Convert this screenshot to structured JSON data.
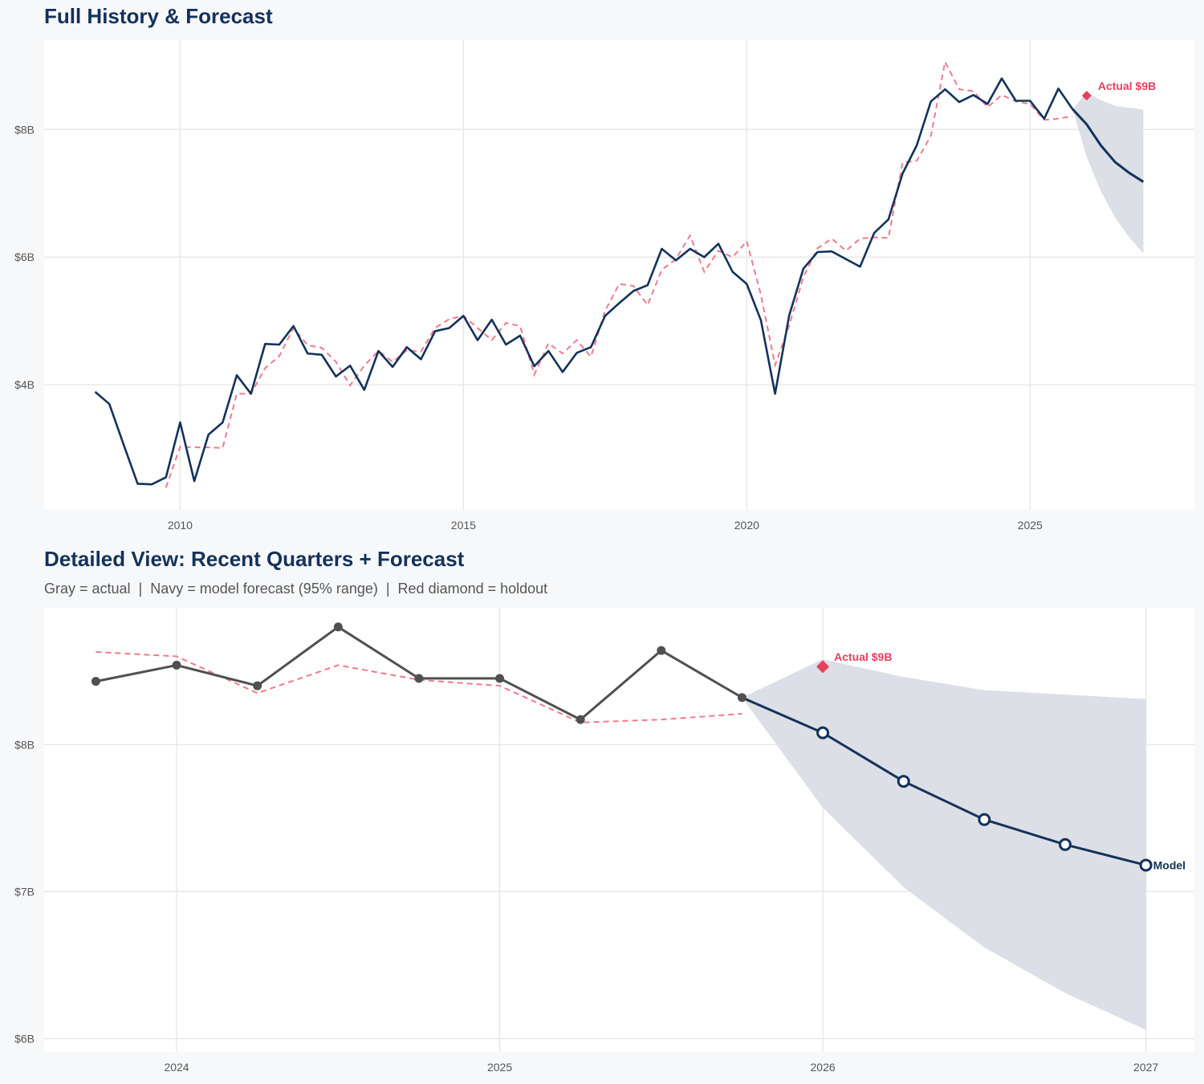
{
  "chart_data": [
    {
      "type": "line",
      "title": "Full History & Forecast",
      "xlim": [
        2007.6,
        2027.9
      ],
      "ylim": [
        2.04,
        9.4
      ],
      "xticks": [
        {
          "value": 2010,
          "label": "2010"
        },
        {
          "value": 2015,
          "label": "2015"
        },
        {
          "value": 2020,
          "label": "2020"
        },
        {
          "value": 2025,
          "label": "2025"
        }
      ],
      "yticks": [
        {
          "value": 4,
          "label": "$4B"
        },
        {
          "value": 6,
          "label": "$6B"
        },
        {
          "value": 8,
          "label": "$8B"
        }
      ],
      "grid": true,
      "actual": {
        "color": "#13325b",
        "x": [
          2008.5,
          2008.75,
          2009,
          2009.25,
          2009.5,
          2009.75,
          2010,
          2010.25,
          2010.5,
          2010.75,
          2011,
          2011.25,
          2011.5,
          2011.75,
          2012,
          2012.25,
          2012.5,
          2012.75,
          2013,
          2013.25,
          2013.5,
          2013.75,
          2014,
          2014.25,
          2014.5,
          2014.75,
          2015,
          2015.25,
          2015.5,
          2015.75,
          2016,
          2016.25,
          2016.5,
          2016.75,
          2017,
          2017.25,
          2017.5,
          2017.75,
          2018,
          2018.25,
          2018.5,
          2018.75,
          2019,
          2019.25,
          2019.5,
          2019.75,
          2020,
          2020.25,
          2020.5,
          2020.75,
          2021,
          2021.25,
          2021.5,
          2021.75,
          2022,
          2022.25,
          2022.5,
          2022.75,
          2023,
          2023.25,
          2023.5,
          2023.75,
          2024,
          2024.25,
          2024.5,
          2024.75,
          2025,
          2025.25,
          2025.5,
          2025.75
        ],
        "y": [
          3.89,
          3.7,
          3.07,
          2.45,
          2.44,
          2.55,
          3.41,
          2.49,
          3.22,
          3.41,
          4.15,
          3.86,
          4.64,
          4.63,
          4.92,
          4.49,
          4.47,
          4.13,
          4.3,
          3.92,
          4.53,
          4.28,
          4.59,
          4.4,
          4.84,
          4.89,
          5.08,
          4.7,
          5.02,
          4.63,
          4.77,
          4.29,
          4.53,
          4.2,
          4.5,
          4.59,
          5.08,
          5.28,
          5.47,
          5.56,
          6.13,
          5.95,
          6.13,
          6.0,
          6.21,
          5.77,
          5.58,
          5.01,
          3.86,
          5.09,
          5.82,
          6.08,
          6.09,
          5.97,
          5.85,
          6.38,
          6.59,
          7.31,
          7.75,
          8.44,
          8.63,
          8.43,
          8.54,
          8.4,
          8.8,
          8.45,
          8.45,
          8.17,
          8.64,
          8.32
        ]
      },
      "fitted": {
        "color": "#f07a8c",
        "x": [
          2009.75,
          2010,
          2010.25,
          2010.5,
          2010.75,
          2011,
          2011.25,
          2011.5,
          2011.75,
          2012,
          2012.25,
          2012.5,
          2012.75,
          2013,
          2013.25,
          2013.5,
          2013.75,
          2014,
          2014.25,
          2014.5,
          2014.75,
          2015,
          2015.25,
          2015.5,
          2015.75,
          2016,
          2016.25,
          2016.5,
          2016.75,
          2017,
          2017.25,
          2017.5,
          2017.75,
          2018,
          2018.25,
          2018.5,
          2018.75,
          2019,
          2019.25,
          2019.5,
          2019.75,
          2020,
          2020.25,
          2020.5,
          2020.75,
          2021,
          2021.25,
          2021.5,
          2021.75,
          2022,
          2022.25,
          2022.5,
          2022.75,
          2023,
          2023.25,
          2023.5,
          2023.75,
          2024,
          2024.25,
          2024.5,
          2024.75,
          2025,
          2025.25,
          2025.5,
          2025.75
        ],
        "y": [
          2.39,
          3.03,
          3.02,
          3.02,
          3.01,
          3.86,
          3.86,
          4.26,
          4.45,
          4.89,
          4.62,
          4.58,
          4.36,
          3.99,
          4.3,
          4.53,
          4.36,
          4.54,
          4.52,
          4.89,
          5.03,
          5.08,
          4.89,
          4.7,
          4.97,
          4.92,
          4.16,
          4.65,
          4.49,
          4.7,
          4.44,
          5.16,
          5.58,
          5.55,
          5.25,
          5.8,
          5.97,
          6.34,
          5.77,
          6.1,
          6.0,
          6.25,
          5.41,
          4.31,
          4.93,
          5.69,
          6.14,
          6.29,
          6.1,
          6.29,
          6.31,
          6.3,
          7.48,
          7.51,
          7.9,
          9.06,
          8.63,
          8.6,
          8.35,
          8.54,
          8.44,
          8.4,
          8.15,
          8.17,
          8.21
        ]
      },
      "forecast": {
        "color": "#13325b",
        "band_color": "#dcdfe5",
        "x": [
          2025.75,
          2026,
          2026.25,
          2026.5,
          2026.75,
          2027
        ],
        "y": [
          8.32,
          8.08,
          7.75,
          7.49,
          7.32,
          7.18
        ],
        "upper": [
          8.32,
          8.58,
          8.46,
          8.37,
          8.34,
          8.31
        ],
        "lower": [
          8.32,
          7.57,
          7.03,
          6.62,
          6.31,
          6.06
        ]
      },
      "holdout": {
        "x": 2026,
        "y": 8.53,
        "label": "Actual $9B",
        "color": "#e5405e"
      }
    },
    {
      "type": "line",
      "title": "Detailed View: Recent Quarters + Forecast",
      "subtitle": "Gray = actual  |  Navy = model forecast (95% range)  |  Red diamond = holdout",
      "xlim": [
        2023.59,
        2027.15
      ],
      "ylim": [
        5.91,
        8.93
      ],
      "xticks": [
        {
          "value": 2024,
          "label": "2024"
        },
        {
          "value": 2025,
          "label": "2025"
        },
        {
          "value": 2026,
          "label": "2026"
        },
        {
          "value": 2027,
          "label": "2027"
        }
      ],
      "yticks": [
        {
          "value": 6,
          "label": "$6B"
        },
        {
          "value": 7,
          "label": "$7B"
        },
        {
          "value": 8,
          "label": "$8B"
        }
      ],
      "grid": true,
      "actual": {
        "color": "#505050",
        "markers": true,
        "x": [
          2023.75,
          2024,
          2024.25,
          2024.5,
          2024.75,
          2025,
          2025.25,
          2025.5,
          2025.75
        ],
        "y": [
          8.43,
          8.54,
          8.4,
          8.8,
          8.45,
          8.45,
          8.17,
          8.64,
          8.32
        ]
      },
      "fitted": {
        "color": "#f07a8c",
        "x": [
          2023.75,
          2024,
          2024.25,
          2024.5,
          2024.75,
          2025,
          2025.25,
          2025.5,
          2025.75
        ],
        "y": [
          8.63,
          8.6,
          8.35,
          8.54,
          8.44,
          8.4,
          8.15,
          8.17,
          8.21
        ]
      },
      "forecast": {
        "color": "#13325b",
        "band_color": "#dcdfe5",
        "markers": true,
        "label": "Model",
        "x": [
          2025.75,
          2026,
          2026.25,
          2026.5,
          2026.75,
          2027
        ],
        "y": [
          8.32,
          8.08,
          7.75,
          7.49,
          7.32,
          7.18
        ],
        "upper": [
          8.32,
          8.58,
          8.46,
          8.37,
          8.34,
          8.31
        ],
        "lower": [
          8.32,
          7.57,
          7.03,
          6.62,
          6.31,
          6.06
        ]
      },
      "holdout": {
        "x": 2026,
        "y": 8.53,
        "label": "Actual $9B",
        "color": "#e5405e"
      }
    }
  ]
}
